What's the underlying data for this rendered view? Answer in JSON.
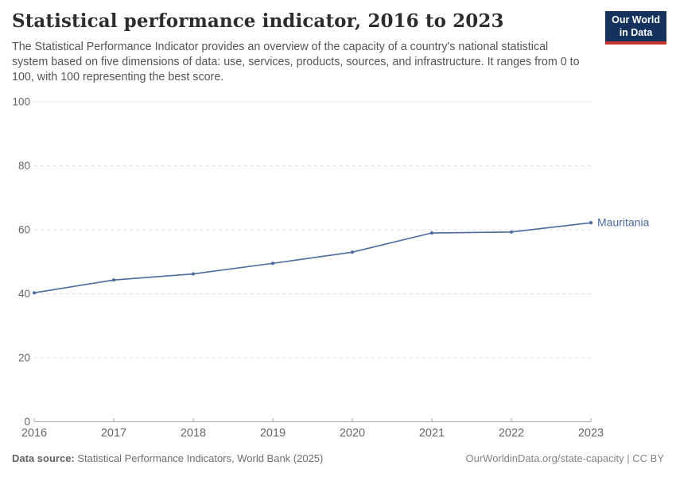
{
  "header": {
    "title": "Statistical performance indicator, 2016 to 2023",
    "logo": {
      "line1": "Our World",
      "line2": "in Data"
    }
  },
  "subtitle": "The Statistical Performance Indicator provides an overview of the capacity of a country's national statistical system based on five dimensions of data: use, services, products, sources, and infrastructure. It ranges from 0 to 100, with 100 representing the best score.",
  "chart_data": {
    "type": "line",
    "title": "Statistical performance indicator, 2016 to 2023",
    "x": [
      2016,
      2017,
      2018,
      2019,
      2020,
      2021,
      2022,
      2023
    ],
    "series": [
      {
        "name": "Mauritania",
        "values": [
          40.3,
          44.3,
          46.2,
          49.5,
          53.0,
          59.0,
          59.3,
          62.2
        ],
        "color": "#4c6a9c"
      }
    ],
    "xlabel": "",
    "ylabel": "",
    "ylim": [
      0,
      100
    ],
    "yticks": [
      0,
      20,
      40,
      60,
      80,
      100
    ],
    "grid": "horizontal-dashed",
    "legend_position": "end-of-line-label",
    "markers": "dots-at-each-point"
  },
  "footer": {
    "source_label": "Data source:",
    "source_text": " Statistical Performance Indicators, World Bank (2025)",
    "right_text": "OurWorldinData.org/state-capacity | CC BY"
  },
  "colors": {
    "line": "#4c6a9c",
    "gridline": "#dcdcdc",
    "axis_line": "#a8a8a8",
    "tick_label": "#666666",
    "logo_bg": "#14325c",
    "logo_bar": "#c5332c"
  }
}
